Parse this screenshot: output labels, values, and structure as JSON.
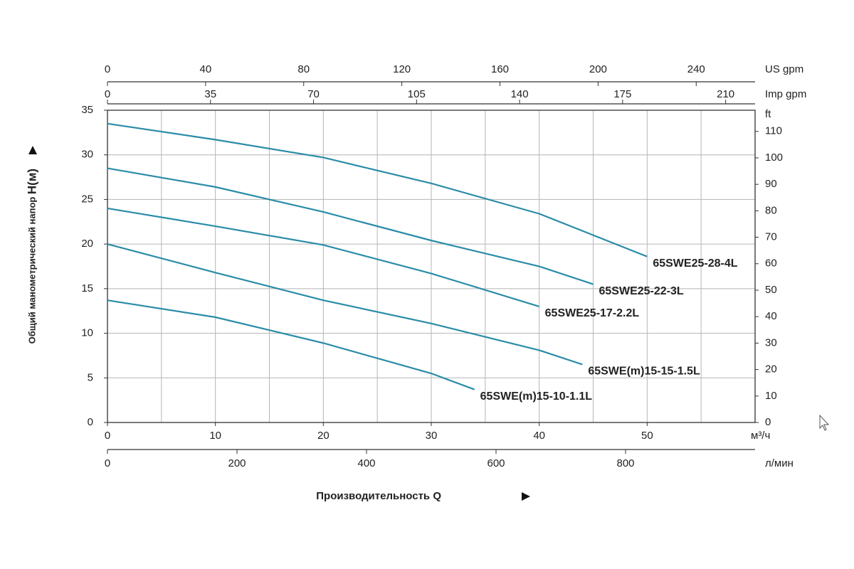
{
  "chart_data": {
    "type": "line",
    "xlabel": "Производительность Q",
    "ylabel": "Общий манометрический напор",
    "ylabel_unit": "H(м)",
    "x_unit": "м³/ч",
    "xlim": [
      0,
      60
    ],
    "xticks": [
      0,
      10,
      20,
      30,
      40,
      50
    ],
    "x_minor_ticks": [
      5,
      15,
      25,
      35,
      45,
      55
    ],
    "ylim": [
      0,
      35
    ],
    "yticks": [
      0,
      5,
      10,
      15,
      20,
      25,
      30,
      35
    ],
    "y2_unit": "ft",
    "y2lim": [
      0,
      118
    ],
    "y2ticks": [
      0,
      10,
      20,
      30,
      40,
      50,
      60,
      70,
      80,
      90,
      100,
      110
    ],
    "secondary_x_axes": [
      {
        "unit": "US gpm",
        "lim": [
          0,
          264
        ],
        "ticks": [
          0,
          40,
          80,
          120,
          160,
          200,
          240
        ]
      },
      {
        "unit": "Imp gpm",
        "lim": [
          0,
          220
        ],
        "ticks": [
          0,
          35,
          70,
          105,
          140,
          175,
          210
        ]
      },
      {
        "unit": "л/мин",
        "lim": [
          0,
          1000
        ],
        "ticks": [
          0,
          200,
          400,
          600,
          800
        ]
      }
    ],
    "grid": true,
    "series": [
      {
        "name": "65SWE25-28-4L",
        "color": "#2a8ca8",
        "x": [
          0,
          10,
          20,
          30,
          40,
          50
        ],
        "values": [
          33.5,
          31.7,
          29.7,
          26.8,
          23.4,
          18.6
        ]
      },
      {
        "name": "65SWE25-22-3L",
        "color": "#2a8ca8",
        "x": [
          0,
          10,
          20,
          30,
          40,
          45
        ],
        "values": [
          28.5,
          26.4,
          23.6,
          20.4,
          17.5,
          15.5
        ]
      },
      {
        "name": "65SWE25-17-2.2L",
        "color": "#2a8ca8",
        "x": [
          0,
          10,
          20,
          30,
          40
        ],
        "values": [
          24,
          22.0,
          19.9,
          16.7,
          13.0
        ]
      },
      {
        "name": "65SWE(m)15-15-1.5L",
        "color": "#2a8ca8",
        "x": [
          0,
          10,
          20,
          30,
          40,
          44
        ],
        "values": [
          20,
          16.8,
          13.7,
          11.1,
          8.1,
          6.5
        ]
      },
      {
        "name": "65SWE(m)15-10-1.1L",
        "color": "#2a8ca8",
        "x": [
          0,
          10,
          20,
          30,
          34
        ],
        "values": [
          13.7,
          11.8,
          8.9,
          5.5,
          3.7
        ]
      }
    ]
  }
}
